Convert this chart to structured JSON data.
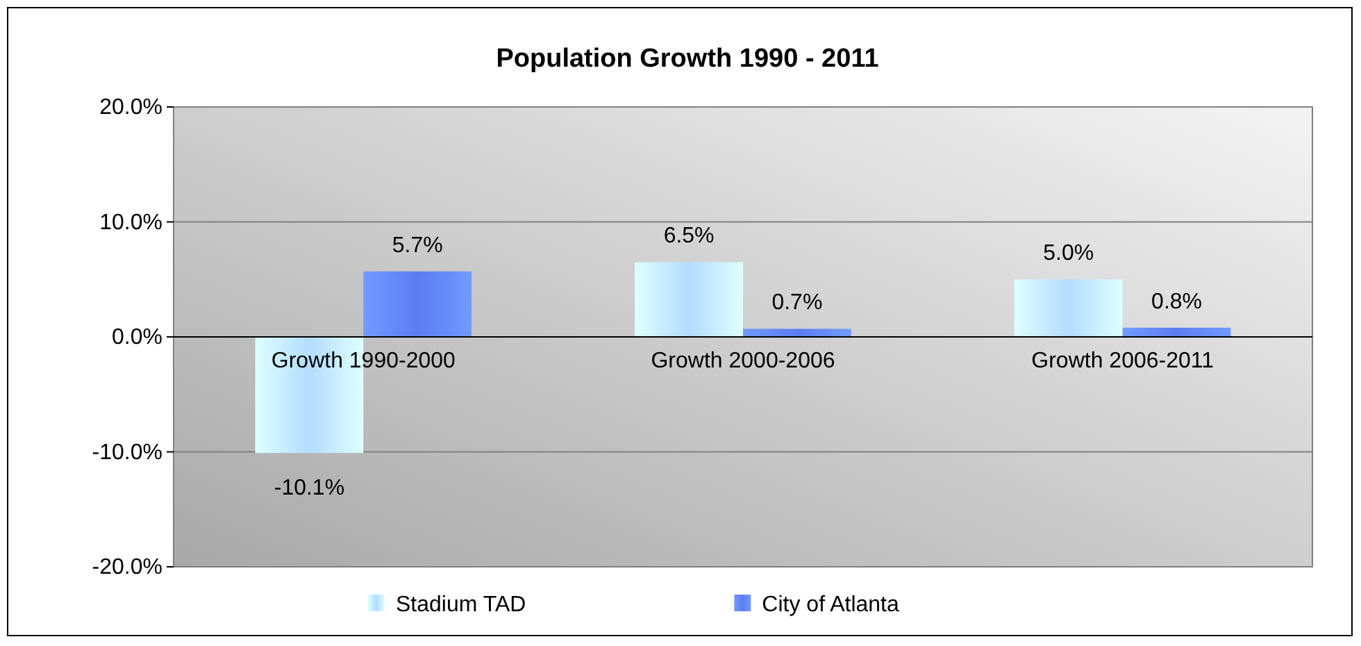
{
  "chart_data": {
    "type": "bar",
    "title": "Population Growth 1990 - 2011",
    "categories": [
      "Growth 1990-2000",
      "Growth 2000-2006",
      "Growth 2006-2011"
    ],
    "series": [
      {
        "name": "Stadium TAD",
        "color": "#b3dcff",
        "values": [
          -10.1,
          6.5,
          5.0
        ],
        "value_labels": [
          "-10.1%",
          "6.5%",
          "5.0%"
        ]
      },
      {
        "name": "City of Atlanta",
        "color": "#5c7cf2",
        "values": [
          5.7,
          0.7,
          0.8
        ],
        "value_labels": [
          "5.7%",
          "0.7%",
          "0.8%"
        ]
      }
    ],
    "ylim": [
      -20,
      20
    ],
    "yticks": [
      {
        "value": -20,
        "label": "-20.0%"
      },
      {
        "value": -10,
        "label": "-10.0%"
      },
      {
        "value": 0,
        "label": "0.0%"
      },
      {
        "value": 10,
        "label": "10.0%"
      },
      {
        "value": 20,
        "label": "20.0%"
      }
    ],
    "grid": "y",
    "legend": "bottom"
  }
}
